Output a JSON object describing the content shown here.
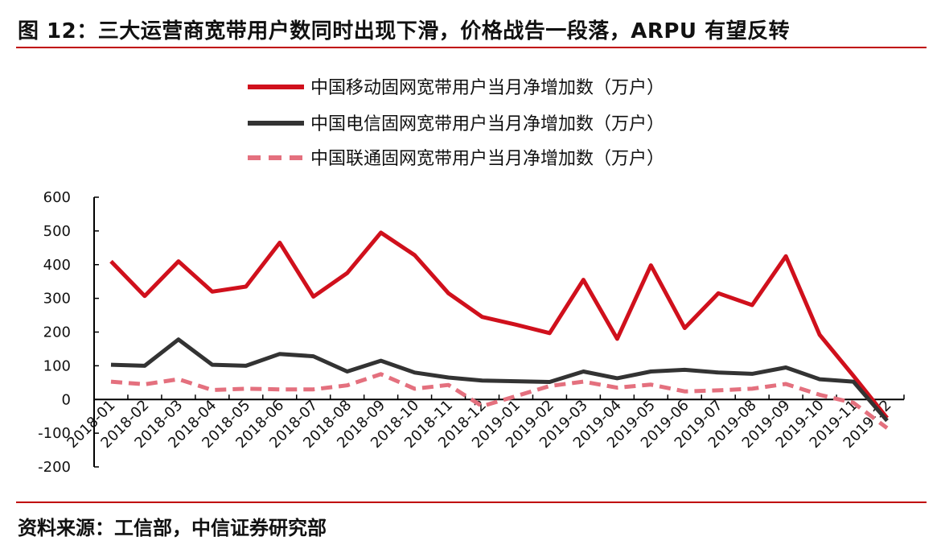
{
  "header": {
    "title": "图 12：三大运营商宽带用户数同时出现下滑，价格战告一段落，ARPU 有望反转"
  },
  "footer": {
    "source": "资料来源：工信部，中信证券研究部"
  },
  "chart_data": {
    "type": "line",
    "title": "",
    "xlabel": "",
    "ylabel": "",
    "ylim": [
      -200,
      600
    ],
    "yticks": [
      600,
      500,
      400,
      300,
      200,
      100,
      0,
      -100,
      -200
    ],
    "grid": false,
    "legend_position": "top",
    "categories": [
      "2018-01",
      "2018-02",
      "2018-03",
      "2018-04",
      "2018-05",
      "2018-06",
      "2018-07",
      "2018-08",
      "2018-09",
      "2018-10",
      "2018-11",
      "2018-12",
      "2019-01",
      "2019-02",
      "2019-03",
      "2019-04",
      "2019-05",
      "2019-06",
      "2019-07",
      "2019-08",
      "2019-09",
      "2019-10",
      "2019-11",
      "2019-12"
    ],
    "series": [
      {
        "name": "中国移动固网宽带用户当月净增加数（万户）",
        "color": "#d0101c",
        "style": "solid",
        "values": [
          410,
          307,
          410,
          320,
          335,
          465,
          305,
          375,
          495,
          428,
          315,
          245,
          222,
          197,
          355,
          180,
          398,
          212,
          315,
          280,
          425,
          192,
          70,
          -55
        ]
      },
      {
        "name": "中国电信固网宽带用户当月净增加数（万户）",
        "color": "#333333",
        "style": "solid",
        "values": [
          103,
          100,
          178,
          103,
          100,
          135,
          128,
          83,
          115,
          80,
          65,
          56,
          54,
          52,
          83,
          63,
          83,
          88,
          80,
          76,
          95,
          60,
          53,
          -63
        ]
      },
      {
        "name": "中国联通固网宽带用户当月净增加数（万户）",
        "color": "#e4707e",
        "style": "dashed",
        "values": [
          53,
          45,
          60,
          28,
          32,
          30,
          30,
          42,
          75,
          32,
          43,
          -20,
          10,
          40,
          53,
          35,
          44,
          24,
          27,
          32,
          46,
          14,
          -10,
          -85
        ]
      }
    ]
  }
}
